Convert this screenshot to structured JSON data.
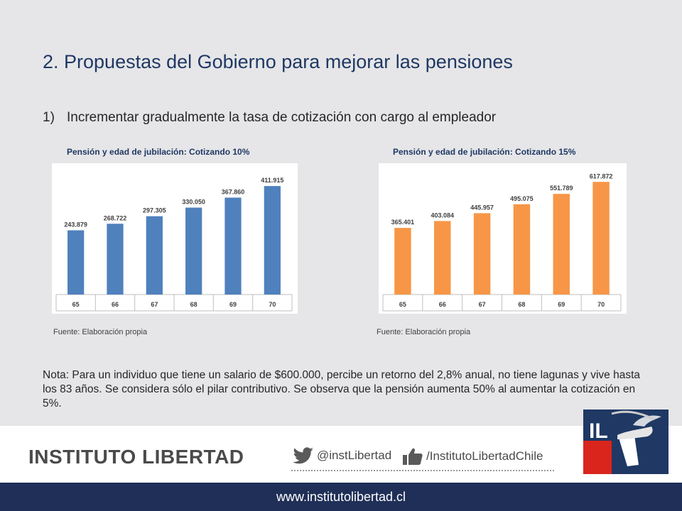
{
  "slide": {
    "title": "2. Propuestas del Gobierno para mejorar las pensiones",
    "point_number": "1)",
    "point_text": "Incrementar gradualmente la tasa de cotización con cargo al empleador"
  },
  "charts": {
    "left_title": "Pensión y edad de jubilación: Cotizando 10%",
    "right_title": "Pensión y edad de jubilación: Cotizando 15%",
    "left_source": "Fuente: Elaboración propia",
    "right_source": "Fuente: Elaboración propia"
  },
  "chart_data": [
    {
      "type": "bar",
      "title": "Pensión y edad de jubilación: Cotizando 10%",
      "categories": [
        "65",
        "66",
        "67",
        "68",
        "69",
        "70"
      ],
      "values": [
        243879,
        268722,
        297305,
        330050,
        367860,
        411915
      ],
      "value_labels": [
        "243.879",
        "268.722",
        "297.305",
        "330.050",
        "367.860",
        "411.915"
      ],
      "ylim": [
        0,
        450000
      ],
      "color": "#4f81bd"
    },
    {
      "type": "bar",
      "title": "Pensión y edad de jubilación: Cotizando 15%",
      "categories": [
        "65",
        "66",
        "67",
        "68",
        "69",
        "70"
      ],
      "values": [
        365401,
        403084,
        445957,
        495075,
        551789,
        617872
      ],
      "value_labels": [
        "365.401",
        "403.084",
        "445.957",
        "495.075",
        "551.789",
        "617.872"
      ],
      "ylim": [
        0,
        650000
      ],
      "color": "#f79646"
    }
  ],
  "note": {
    "text": "Nota: Para un individuo que tiene un salario de $600.000, percibe un retorno del 2,8% anual, no tiene lagunas y vive hasta los 83 años. Se considera sólo el pilar contributivo. Se observa que la pensión aumenta 50% al aumentar la cotización en 5%."
  },
  "footer": {
    "brand": "INSTITUTO LIBERTAD",
    "twitter": "@instLibertad",
    "facebook": "/InstitutoLibertadChile",
    "logo_text": "IL",
    "url": "www.institutolibertad.cl"
  },
  "colors": {
    "title": "#1f3864",
    "bar_blue": "#4f81bd",
    "bar_orange": "#f79646",
    "footer_bar": "#1f2f57",
    "logo_red": "#d9251c",
    "logo_blue": "#1f3864"
  },
  "icons": [
    "twitter-bird-icon",
    "facebook-like-icon",
    "torch-icon"
  ]
}
